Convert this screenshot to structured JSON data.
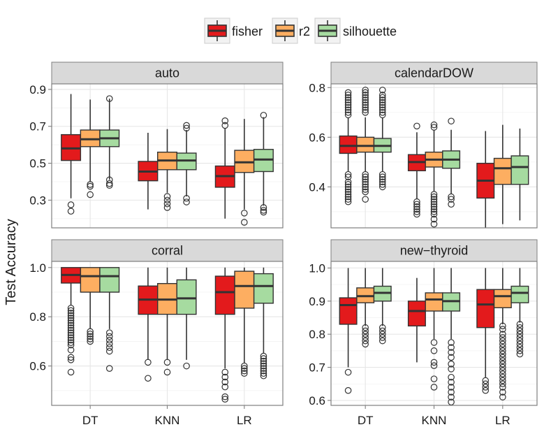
{
  "legend": {
    "items": [
      {
        "name": "fisher",
        "color": "#e31a1c"
      },
      {
        "name": "r2",
        "color": "#fdae61"
      },
      {
        "name": "silhouette",
        "color": "#a6dba0"
      }
    ]
  },
  "chart_data": {
    "type": "boxplot",
    "ylabel": "Test Accuracy",
    "categories": [
      "DT",
      "KNN",
      "LR"
    ],
    "series_names": [
      "fisher",
      "r2",
      "silhouette"
    ],
    "panels": [
      {
        "title": "auto",
        "ylim": [
          0.15,
          0.93
        ],
        "yticks": [
          0.3,
          0.5,
          0.7,
          0.9
        ],
        "ytick_labels": [
          "0.3",
          "0.5",
          "0.7",
          "0.9"
        ],
        "boxes": [
          {
            "category": "DT",
            "series": "fisher",
            "min": 0.31,
            "q1": 0.515,
            "median": 0.58,
            "q3": 0.655,
            "max": 0.875,
            "outliers": [
              0.275,
              0.24
            ]
          },
          {
            "category": "DT",
            "series": "r2",
            "min": 0.4,
            "q1": 0.59,
            "median": 0.63,
            "q3": 0.68,
            "max": 0.845,
            "outliers": [
              0.385,
              0.375,
              0.33
            ]
          },
          {
            "category": "DT",
            "series": "silhouette",
            "min": 0.41,
            "q1": 0.59,
            "median": 0.635,
            "q3": 0.68,
            "max": 0.85,
            "outliers": [
              0.41,
              0.39,
              0.38,
              0.85
            ]
          },
          {
            "category": "KNN",
            "series": "fisher",
            "min": 0.25,
            "q1": 0.405,
            "median": 0.455,
            "q3": 0.51,
            "max": 0.665,
            "outliers": []
          },
          {
            "category": "KNN",
            "series": "r2",
            "min": 0.34,
            "q1": 0.465,
            "median": 0.515,
            "q3": 0.56,
            "max": 0.685,
            "outliers": [
              0.32,
              0.3,
              0.28,
              0.26
            ]
          },
          {
            "category": "KNN",
            "series": "silhouette",
            "min": 0.32,
            "q1": 0.465,
            "median": 0.515,
            "q3": 0.555,
            "max": 0.68,
            "outliers": [
              0.705,
              0.69,
              0.31,
              0.29
            ]
          },
          {
            "category": "LR",
            "series": "fisher",
            "min": 0.2,
            "q1": 0.37,
            "median": 0.43,
            "q3": 0.485,
            "max": 0.69,
            "outliers": [
              0.73,
              0.705
            ]
          },
          {
            "category": "LR",
            "series": "r2",
            "min": 0.25,
            "q1": 0.45,
            "median": 0.505,
            "q3": 0.57,
            "max": 0.74,
            "outliers": [
              0.23,
              0.18
            ]
          },
          {
            "category": "LR",
            "series": "silhouette",
            "min": 0.27,
            "q1": 0.455,
            "median": 0.52,
            "q3": 0.575,
            "max": 0.75,
            "outliers": [
              0.76,
              0.26,
              0.245,
              0.235
            ]
          }
        ]
      },
      {
        "title": "calendarDOW",
        "ylim": [
          0.235,
          0.815
        ],
        "yticks": [
          0.4,
          0.6,
          0.8
        ],
        "ytick_labels": [
          "0.4",
          "0.6",
          "0.8"
        ],
        "boxes": [
          {
            "category": "DT",
            "series": "fisher",
            "min": 0.46,
            "q1": 0.535,
            "median": 0.565,
            "q3": 0.605,
            "max": 0.68,
            "outliers": [
              0.78,
              0.77,
              0.76,
              0.75,
              0.74,
              0.73,
              0.72,
              0.71,
              0.7,
              0.69,
              0.45,
              0.44,
              0.42,
              0.41,
              0.4,
              0.39,
              0.38,
              0.37,
              0.36,
              0.35,
              0.34
            ]
          },
          {
            "category": "DT",
            "series": "r2",
            "min": 0.46,
            "q1": 0.54,
            "median": 0.565,
            "q3": 0.6,
            "max": 0.68,
            "outliers": [
              0.79,
              0.78,
              0.77,
              0.76,
              0.75,
              0.74,
              0.73,
              0.72,
              0.71,
              0.7,
              0.45,
              0.44,
              0.43,
              0.42,
              0.41,
              0.4,
              0.39,
              0.38,
              0.35
            ]
          },
          {
            "category": "DT",
            "series": "silhouette",
            "min": 0.46,
            "q1": 0.54,
            "median": 0.565,
            "q3": 0.595,
            "max": 0.68,
            "outliers": [
              0.79,
              0.77,
              0.76,
              0.75,
              0.74,
              0.73,
              0.72,
              0.71,
              0.7,
              0.69,
              0.45,
              0.44,
              0.43,
              0.42,
              0.41,
              0.4
            ]
          },
          {
            "category": "KNN",
            "series": "fisher",
            "min": 0.35,
            "q1": 0.465,
            "median": 0.5,
            "q3": 0.53,
            "max": 0.62,
            "outliers": [
              0.645,
              0.34,
              0.33,
              0.32,
              0.31,
              0.3,
              0.29
            ]
          },
          {
            "category": "KNN",
            "series": "r2",
            "min": 0.38,
            "q1": 0.48,
            "median": 0.51,
            "q3": 0.54,
            "max": 0.63,
            "outliers": [
              0.65,
              0.64,
              0.37,
              0.36,
              0.35,
              0.34,
              0.33,
              0.32,
              0.31,
              0.3,
              0.29,
              0.27,
              0.25
            ]
          },
          {
            "category": "KNN",
            "series": "silhouette",
            "min": 0.37,
            "q1": 0.475,
            "median": 0.51,
            "q3": 0.545,
            "max": 0.63,
            "outliers": [
              0.665,
              0.36,
              0.35,
              0.33
            ]
          },
          {
            "category": "LR",
            "series": "fisher",
            "min": 0.235,
            "q1": 0.355,
            "median": 0.425,
            "q3": 0.495,
            "max": 0.625,
            "outliers": []
          },
          {
            "category": "LR",
            "series": "r2",
            "min": 0.25,
            "q1": 0.41,
            "median": 0.475,
            "q3": 0.515,
            "max": 0.65,
            "outliers": []
          },
          {
            "category": "LR",
            "series": "silhouette",
            "min": 0.265,
            "q1": 0.41,
            "median": 0.48,
            "q3": 0.525,
            "max": 0.635,
            "outliers": []
          }
        ]
      },
      {
        "title": "corral",
        "ylim": [
          0.44,
          1.025
        ],
        "yticks": [
          0.6,
          0.8,
          1.0
        ],
        "ytick_labels": [
          "0.6",
          "0.8",
          "1.0"
        ],
        "boxes": [
          {
            "category": "DT",
            "series": "fisher",
            "min": 0.845,
            "q1": 0.937,
            "median": 0.97,
            "q3": 1.0,
            "max": 1.0,
            "outliers": [
              0.835,
              0.825,
              0.815,
              0.805,
              0.795,
              0.785,
              0.775,
              0.765,
              0.755,
              0.745,
              0.735,
              0.725,
              0.715,
              0.705,
              0.695,
              0.685,
              0.665,
              0.635,
              0.625,
              0.575
            ]
          },
          {
            "category": "DT",
            "series": "r2",
            "min": 0.75,
            "q1": 0.9,
            "median": 0.965,
            "q3": 1.0,
            "max": 1.0,
            "outliers": [
              0.74,
              0.73,
              0.72,
              0.71,
              0.7
            ]
          },
          {
            "category": "DT",
            "series": "silhouette",
            "min": 0.75,
            "q1": 0.9,
            "median": 0.965,
            "q3": 1.0,
            "max": 1.0,
            "outliers": [
              0.735,
              0.72,
              0.705,
              0.69,
              0.675,
              0.66,
              0.59
            ]
          },
          {
            "category": "KNN",
            "series": "fisher",
            "min": 0.625,
            "q1": 0.81,
            "median": 0.87,
            "q3": 0.925,
            "max": 1.0,
            "outliers": [
              0.615,
              0.55
            ]
          },
          {
            "category": "KNN",
            "series": "r2",
            "min": 0.625,
            "q1": 0.81,
            "median": 0.87,
            "q3": 0.935,
            "max": 1.0,
            "outliers": [
              0.615,
              0.575
            ]
          },
          {
            "category": "KNN",
            "series": "silhouette",
            "min": 0.625,
            "q1": 0.81,
            "median": 0.875,
            "q3": 0.95,
            "max": 1.0,
            "outliers": [
              0.6
            ]
          },
          {
            "category": "LR",
            "series": "fisher",
            "min": 0.59,
            "q1": 0.81,
            "median": 0.9,
            "q3": 0.965,
            "max": 1.0,
            "outliers": [
              0.575,
              0.555,
              0.535,
              0.515,
              0.475,
              0.465
            ]
          },
          {
            "category": "LR",
            "series": "r2",
            "min": 0.61,
            "q1": 0.835,
            "median": 0.925,
            "q3": 0.985,
            "max": 1.0,
            "outliers": [
              0.6,
              0.59,
              0.58,
              0.57
            ]
          },
          {
            "category": "LR",
            "series": "silhouette",
            "min": 0.65,
            "q1": 0.855,
            "median": 0.925,
            "q3": 0.975,
            "max": 1.0,
            "outliers": [
              0.64,
              0.63,
              0.62,
              0.61,
              0.6,
              0.59,
              0.58,
              0.57,
              0.56
            ]
          }
        ]
      },
      {
        "title": "new−thyroid",
        "ylim": [
          0.585,
          1.02
        ],
        "yticks": [
          0.6,
          0.7,
          0.8,
          0.9,
          1.0
        ],
        "ytick_labels": [
          "0.6",
          "0.7",
          "0.8",
          "0.9",
          "1.0"
        ],
        "boxes": [
          {
            "category": "DT",
            "series": "fisher",
            "min": 0.7,
            "q1": 0.83,
            "median": 0.888,
            "q3": 0.91,
            "max": 1.0,
            "outliers": [
              0.685,
              0.63
            ]
          },
          {
            "category": "DT",
            "series": "r2",
            "min": 0.825,
            "q1": 0.895,
            "median": 0.915,
            "q3": 0.94,
            "max": 1.0,
            "outliers": [
              0.82,
              0.81,
              0.8,
              0.79,
              0.78,
              0.77
            ]
          },
          {
            "category": "DT",
            "series": "silhouette",
            "min": 0.825,
            "q1": 0.9,
            "median": 0.925,
            "q3": 0.945,
            "max": 1.0,
            "outliers": [
              0.82,
              0.81,
              0.8,
              0.79,
              0.78
            ]
          },
          {
            "category": "KNN",
            "series": "fisher",
            "min": 0.715,
            "q1": 0.825,
            "median": 0.87,
            "q3": 0.9,
            "max": 0.97,
            "outliers": []
          },
          {
            "category": "KNN",
            "series": "r2",
            "min": 0.785,
            "q1": 0.87,
            "median": 0.905,
            "q3": 0.925,
            "max": 1.0,
            "outliers": [
              0.775,
              0.75,
              0.715,
              0.705,
              0.665,
              0.64
            ]
          },
          {
            "category": "KNN",
            "series": "silhouette",
            "min": 0.785,
            "q1": 0.87,
            "median": 0.9,
            "q3": 0.925,
            "max": 1.0,
            "outliers": [
              0.775,
              0.76,
              0.745,
              0.73,
              0.71,
              0.695,
              0.67,
              0.655,
              0.64,
              0.625,
              0.61,
              0.595
            ]
          },
          {
            "category": "LR",
            "series": "fisher",
            "min": 0.67,
            "q1": 0.82,
            "median": 0.89,
            "q3": 0.935,
            "max": 1.0,
            "outliers": [
              0.66,
              0.65,
              0.64,
              0.63
            ]
          },
          {
            "category": "LR",
            "series": "r2",
            "min": 0.83,
            "q1": 0.88,
            "median": 0.915,
            "q3": 0.935,
            "max": 1.0,
            "outliers": [
              0.825,
              0.815,
              0.8,
              0.79,
              0.78,
              0.77,
              0.76,
              0.75,
              0.74,
              0.73,
              0.72,
              0.71,
              0.7,
              0.69,
              0.68,
              0.67,
              0.66,
              0.65,
              0.64,
              0.625,
              0.61
            ]
          },
          {
            "category": "LR",
            "series": "silhouette",
            "min": 0.835,
            "q1": 0.895,
            "median": 0.925,
            "q3": 0.945,
            "max": 1.0,
            "outliers": [
              0.83,
              0.82,
              0.81,
              0.8,
              0.79,
              0.78,
              0.77,
              0.76,
              0.75,
              0.74
            ]
          }
        ]
      }
    ]
  }
}
